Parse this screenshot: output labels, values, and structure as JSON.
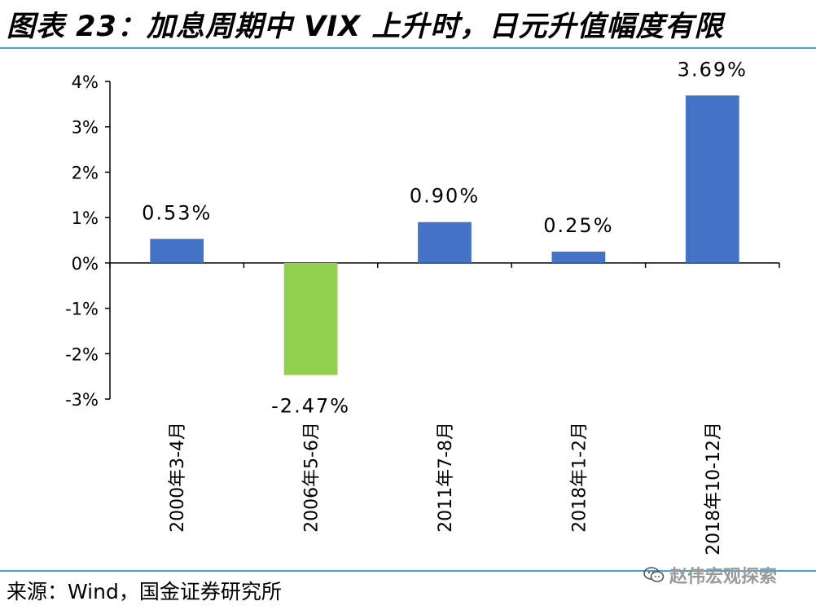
{
  "header": {
    "title": "图表 23：加息周期中 VIX 上升时，日元升值幅度有限"
  },
  "footer": {
    "source": "来源：Wind，国金证券研究所"
  },
  "watermark": {
    "text": "赵伟宏观探索",
    "icon": "wechat-icon"
  },
  "colors": {
    "positive": "#4472c4",
    "negative": "#92d050",
    "rule": "#4aa3d3"
  },
  "chart_data": {
    "type": "bar",
    "title": "图表 23：加息周期中 VIX 上升时，日元升值幅度有限",
    "xlabel": "",
    "ylabel": "",
    "categories": [
      "2000年3-4月",
      "2006年5-6月",
      "2011年7-8月",
      "2018年1-2月",
      "2018年10-12月"
    ],
    "values": [
      0.53,
      -2.47,
      0.9,
      0.25,
      3.69
    ],
    "data_labels": [
      "0.53%",
      "-2.47%",
      "0.90%",
      "0.25%",
      "3.69%"
    ],
    "ylim": [
      -3,
      4
    ],
    "yticks": [
      4,
      3,
      2,
      1,
      0,
      -1,
      -2,
      -3
    ],
    "ytick_labels": [
      "4%",
      "3%",
      "2%",
      "1%",
      "0%",
      "-1%",
      "-2%",
      "-3%"
    ],
    "grid": false,
    "legend": "none"
  }
}
